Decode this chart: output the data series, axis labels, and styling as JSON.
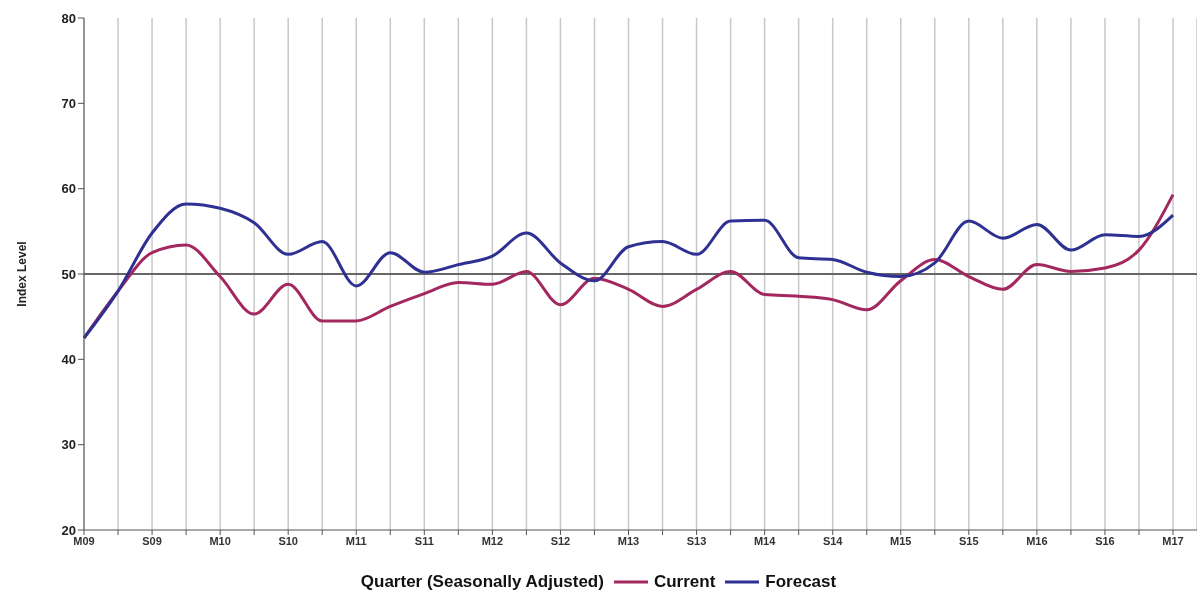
{
  "chart_data": {
    "type": "line",
    "xlabel": "Quarter (Seasonally Adjusted)",
    "ylabel": "Index Level",
    "categories": [
      "M09",
      null,
      "S09",
      null,
      "M10",
      null,
      "S10",
      null,
      "M11",
      null,
      "S11",
      null,
      "M12",
      null,
      "S12",
      null,
      "M13",
      null,
      "S13",
      null,
      "M14",
      null,
      "S14",
      null,
      "M15",
      null,
      "S15",
      null,
      "M16",
      null,
      "S16",
      null,
      "M17"
    ],
    "series": [
      {
        "name": "Current",
        "color": "#a3285f",
        "values": [
          42.5,
          48,
          52.5,
          53.4,
          49.7,
          45.3,
          48.8,
          44.5,
          44.5,
          46.2,
          47.7,
          49,
          48.8,
          50.3,
          46.4,
          49.5,
          48.2,
          46.2,
          48.2,
          50.3,
          47.6,
          47.4,
          47,
          45.8,
          49.2,
          51.7,
          49.7,
          48.2,
          51.1,
          50.3,
          50.7,
          52.8,
          59.3
        ]
      },
      {
        "name": "Forecast",
        "color": "#2e3192",
        "values": [
          42.5,
          48,
          54.8,
          58.2,
          57.7,
          56,
          52.3,
          53.8,
          48.6,
          52.5,
          50.2,
          51.1,
          52.1,
          54.8,
          51.3,
          49.2,
          53.2,
          53.8,
          52.3,
          56.2,
          56.3,
          51.9,
          51.7,
          50.2,
          49.7,
          51.3,
          56.2,
          54.2,
          55.8,
          52.8,
          54.6,
          54.4,
          56.9
        ]
      }
    ],
    "ylim": [
      20,
      80
    ],
    "yticks": [
      20,
      30,
      40,
      50,
      60,
      70,
      80
    ],
    "grid": "x",
    "legend": "bottom",
    "marker": "none",
    "line_style": "solid",
    "ref_lines": [
      {
        "axis": "y",
        "value": 50,
        "color": "#666666"
      }
    ]
  }
}
